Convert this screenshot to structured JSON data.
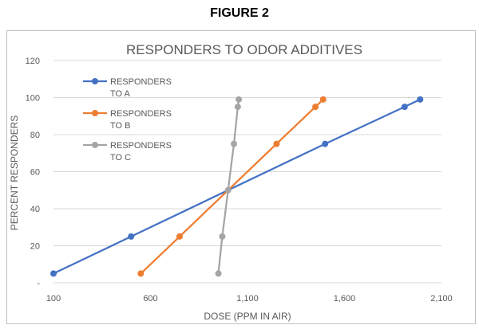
{
  "figure_label": "FIGURE 2",
  "colors": {
    "A": "#4472c4",
    "B": "#ed7d31",
    "C": "#a5a5a5",
    "grid": "#d9d9d9",
    "text": "#595959"
  },
  "chart_data": {
    "type": "line",
    "title": "RESPONDERS TO ODOR ADDITIVES",
    "xlabel": "DOSE (PPM IN AIR)",
    "ylabel": "PERCENT RESPONDERS",
    "xlim": [
      100,
      2100
    ],
    "ylim": [
      0,
      120
    ],
    "x_ticks": [
      {
        "value": 100,
        "label": "100"
      },
      {
        "value": 600,
        "label": "600"
      },
      {
        "value": 1100,
        "label": "1,100"
      },
      {
        "value": 1600,
        "label": "1,600"
      },
      {
        "value": 2100,
        "label": "2,100"
      }
    ],
    "y_ticks": [
      {
        "value": 0,
        "label": "-"
      },
      {
        "value": 20,
        "label": "20"
      },
      {
        "value": 40,
        "label": "40"
      },
      {
        "value": 60,
        "label": "60"
      },
      {
        "value": 80,
        "label": "80"
      },
      {
        "value": 100,
        "label": "100"
      },
      {
        "value": 120,
        "label": "120"
      }
    ],
    "grid": true,
    "legend_position": "top-left",
    "series": [
      {
        "key": "A",
        "name": [
          "RESPONDERS",
          "TO A"
        ],
        "color": "#4472c4",
        "points": [
          [
            100,
            5
          ],
          [
            500,
            25
          ],
          [
            1500,
            75
          ],
          [
            1910,
            95
          ],
          [
            1990,
            99
          ]
        ]
      },
      {
        "key": "B",
        "name": [
          "RESPONDERS",
          "TO B"
        ],
        "color": "#ed7d31",
        "points": [
          [
            550,
            5
          ],
          [
            750,
            25
          ],
          [
            1250,
            75
          ],
          [
            1450,
            95
          ],
          [
            1490,
            99
          ]
        ]
      },
      {
        "key": "C",
        "name": [
          "RESPONDERS",
          "TO C"
        ],
        "color": "#a5a5a5",
        "points": [
          [
            950,
            5
          ],
          [
            970,
            25
          ],
          [
            1000,
            50
          ],
          [
            1030,
            75
          ],
          [
            1050,
            95
          ],
          [
            1055,
            99
          ]
        ]
      }
    ]
  }
}
